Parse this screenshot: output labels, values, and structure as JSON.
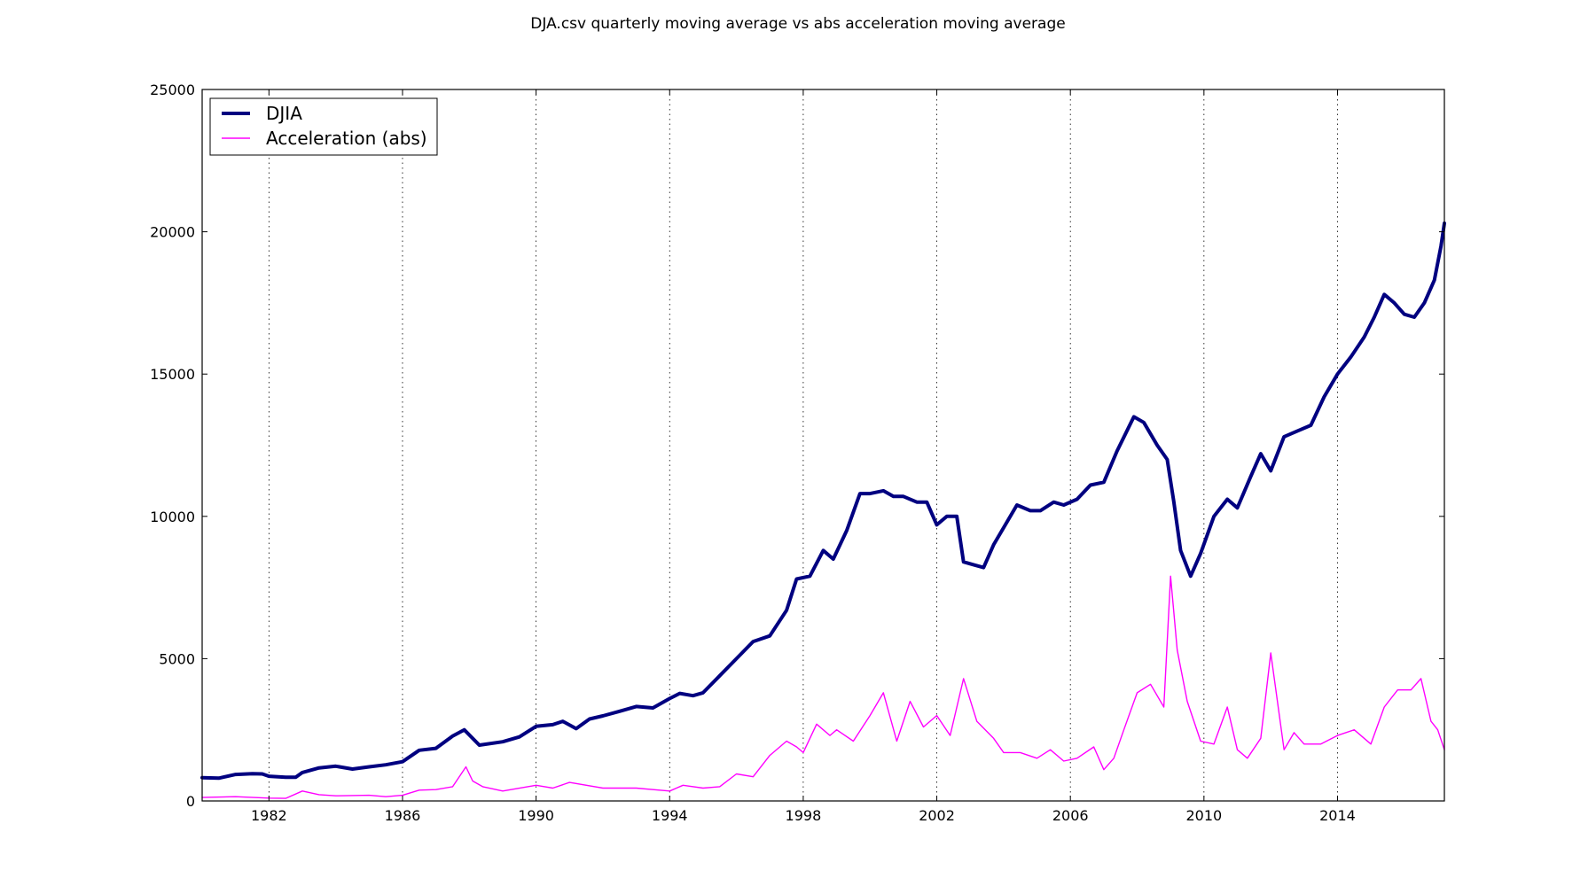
{
  "chart_data": {
    "type": "line",
    "title": "DJA.csv quarterly moving average vs abs acceleration moving average",
    "xlabel": "",
    "ylabel": "",
    "xlim": [
      1980.0,
      2017.2
    ],
    "ylim": [
      0,
      25000
    ],
    "x_ticks": [
      1982,
      1986,
      1990,
      1994,
      1998,
      2002,
      2006,
      2010,
      2014
    ],
    "y_ticks": [
      0,
      5000,
      10000,
      15000,
      20000,
      25000
    ],
    "grid": "x-dotted",
    "legend_position": "top-left",
    "series": [
      {
        "name": "DJIA",
        "color": "#000080",
        "x": [
          1980.0,
          1980.5,
          1981.0,
          1981.5,
          1981.8,
          1982.0,
          1982.5,
          1982.8,
          1983.0,
          1983.5,
          1984.0,
          1984.5,
          1985.0,
          1985.5,
          1986.0,
          1986.5,
          1987.0,
          1987.5,
          1987.85,
          1988.3,
          1989.0,
          1989.5,
          1990.0,
          1990.5,
          1990.8,
          1991.2,
          1991.6,
          1992.0,
          1992.5,
          1993.0,
          1993.5,
          1994.0,
          1994.3,
          1994.7,
          1995.0,
          1995.5,
          1996.0,
          1996.5,
          1997.0,
          1997.5,
          1997.8,
          1998.2,
          1998.6,
          1998.9,
          1999.3,
          1999.7,
          2000.0,
          2000.4,
          2000.7,
          2001.0,
          2001.4,
          2001.7,
          2002.0,
          2002.3,
          2002.6,
          2002.8,
          2003.1,
          2003.4,
          2003.7,
          2004.0,
          2004.4,
          2004.8,
          2005.1,
          2005.5,
          2005.8,
          2006.2,
          2006.6,
          2007.0,
          2007.4,
          2007.9,
          2008.2,
          2008.6,
          2008.9,
          2009.1,
          2009.3,
          2009.6,
          2009.9,
          2010.3,
          2010.7,
          2011.0,
          2011.4,
          2011.7,
          2012.0,
          2012.4,
          2012.8,
          2013.2,
          2013.6,
          2014.0,
          2014.4,
          2014.8,
          2015.1,
          2015.4,
          2015.7,
          2016.0,
          2016.3,
          2016.6,
          2016.9,
          2017.1,
          2017.2
        ],
        "values": [
          820,
          800,
          930,
          960,
          950,
          870,
          830,
          830,
          1000,
          1160,
          1220,
          1120,
          1200,
          1270,
          1380,
          1780,
          1850,
          2280,
          2500,
          1960,
          2080,
          2250,
          2620,
          2680,
          2800,
          2540,
          2880,
          2990,
          3150,
          3320,
          3270,
          3600,
          3780,
          3700,
          3800,
          4400,
          5000,
          5600,
          5800,
          6700,
          7800,
          7900,
          8800,
          8500,
          9500,
          10800,
          10800,
          10900,
          10700,
          10700,
          10500,
          10500,
          9700,
          10000,
          10000,
          8400,
          8300,
          8200,
          9000,
          9600,
          10400,
          10200,
          10200,
          10500,
          10400,
          10600,
          11100,
          11200,
          12300,
          13500,
          13300,
          12500,
          12000,
          10500,
          8800,
          7900,
          8700,
          10000,
          10600,
          10300,
          11400,
          12200,
          11600,
          12800,
          13000,
          13200,
          14200,
          15000,
          15600,
          16300,
          17000,
          17800,
          17500,
          17100,
          17000,
          17500,
          18300,
          19500,
          20300
        ]
      },
      {
        "name": "Acceleration (abs)",
        "color": "#ff00ff",
        "x": [
          1980.0,
          1981.0,
          1982.0,
          1982.5,
          1983.0,
          1983.5,
          1984.0,
          1985.0,
          1985.5,
          1986.0,
          1986.5,
          1987.0,
          1987.5,
          1987.9,
          1988.1,
          1988.4,
          1989.0,
          1990.0,
          1990.5,
          1991.0,
          1992.0,
          1993.0,
          1994.0,
          1994.4,
          1995.0,
          1995.5,
          1996.0,
          1996.5,
          1997.0,
          1997.5,
          1997.8,
          1998.0,
          1998.4,
          1998.8,
          1999.0,
          1999.5,
          2000.0,
          2000.4,
          2000.8,
          2001.2,
          2001.6,
          2002.0,
          2002.4,
          2002.8,
          2003.2,
          2003.7,
          2004.0,
          2004.5,
          2005.0,
          2005.4,
          2005.8,
          2006.2,
          2006.7,
          2007.0,
          2007.3,
          2007.6,
          2008.0,
          2008.4,
          2008.8,
          2009.0,
          2009.2,
          2009.5,
          2009.9,
          2010.3,
          2010.7,
          2011.0,
          2011.3,
          2011.7,
          2012.0,
          2012.4,
          2012.7,
          2013.0,
          2013.5,
          2014.0,
          2014.5,
          2015.0,
          2015.4,
          2015.8,
          2016.2,
          2016.5,
          2016.8,
          2017.0,
          2017.2
        ],
        "values": [
          120,
          150,
          100,
          90,
          350,
          220,
          180,
          200,
          150,
          200,
          380,
          400,
          500,
          1200,
          700,
          500,
          350,
          550,
          450,
          650,
          450,
          450,
          350,
          550,
          450,
          500,
          950,
          850,
          1600,
          2100,
          1900,
          1700,
          2700,
          2300,
          2500,
          2100,
          3000,
          3800,
          2100,
          3500,
          2600,
          3000,
          2300,
          4300,
          2800,
          2200,
          1700,
          1700,
          1500,
          1800,
          1400,
          1500,
          1900,
          1100,
          1500,
          2500,
          3800,
          4100,
          3300,
          7900,
          5300,
          3500,
          2100,
          2000,
          3300,
          1800,
          1500,
          2200,
          5200,
          1800,
          2400,
          2000,
          2000,
          2300,
          2500,
          2000,
          3300,
          3900,
          3900,
          4300,
          2800,
          2500,
          1800
        ]
      }
    ]
  }
}
